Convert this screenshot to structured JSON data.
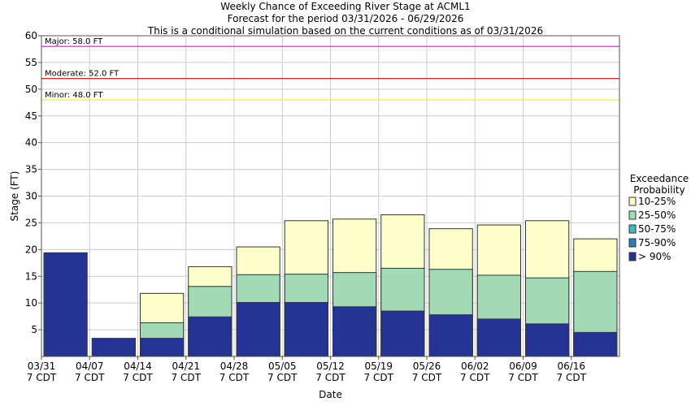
{
  "chart_data": {
    "type": "bar",
    "stacked": true,
    "title": [
      "Weekly Chance of Exceeding River Stage at ACML1",
      "Forecast for the period 03/31/2026 - 06/29/2026",
      "This is a conditional simulation based on the current conditions as of 03/31/2026"
    ],
    "xlabel": "Date",
    "ylabel": "Stage (FT)",
    "ylim": [
      0,
      60
    ],
    "yticks": [
      5,
      10,
      15,
      20,
      25,
      30,
      35,
      40,
      45,
      50,
      55,
      60
    ],
    "xtick_labels": [
      [
        "03/31",
        "7 CDT"
      ],
      [
        "04/07",
        "7 CDT"
      ],
      [
        "04/14",
        "7 CDT"
      ],
      [
        "04/21",
        "7 CDT"
      ],
      [
        "04/28",
        "7 CDT"
      ],
      [
        "05/05",
        "7 CDT"
      ],
      [
        "05/12",
        "7 CDT"
      ],
      [
        "05/19",
        "7 CDT"
      ],
      [
        "05/26",
        "7 CDT"
      ],
      [
        "06/02",
        "7 CDT"
      ],
      [
        "06/09",
        "7 CDT"
      ],
      [
        "06/16",
        "7 CDT"
      ]
    ],
    "grid": true,
    "legend_title": [
      "Exceedance",
      "Probability"
    ],
    "legend_position": "right",
    "thresholds": [
      {
        "label": "Major: 58.0 FT",
        "value": 58.0,
        "color": "#cc44cc"
      },
      {
        "label": "Moderate: 52.0 FT",
        "value": 52.0,
        "color": "#dd2222"
      },
      {
        "label": "Minor: 48.0 FT",
        "value": 48.0,
        "color": "#eeee44"
      }
    ],
    "series": [
      {
        "name": "10-25%",
        "color": "#ffffcc",
        "values": [
          null,
          null,
          11.8,
          16.8,
          20.5,
          25.4,
          25.7,
          26.5,
          23.9,
          24.6,
          25.4,
          22.0
        ]
      },
      {
        "name": "25-50%",
        "color": "#a2dab5",
        "values": [
          null,
          null,
          6.3,
          13.1,
          15.3,
          15.4,
          15.7,
          16.5,
          16.3,
          15.2,
          14.7,
          15.9
        ]
      },
      {
        "name": "50-75%",
        "color": "#41b6c4",
        "values": [
          null,
          null,
          null,
          null,
          null,
          null,
          null,
          null,
          null,
          null,
          null,
          null
        ]
      },
      {
        "name": "75-90%",
        "color": "#2c7fb8",
        "values": [
          null,
          null,
          null,
          null,
          null,
          null,
          null,
          null,
          null,
          null,
          null,
          null
        ]
      },
      {
        "name": "> 90%",
        "color": "#253494",
        "values": [
          19.4,
          3.4,
          3.4,
          7.4,
          10.1,
          10.1,
          9.3,
          8.5,
          7.8,
          7.0,
          6.1,
          4.5
        ]
      }
    ]
  }
}
